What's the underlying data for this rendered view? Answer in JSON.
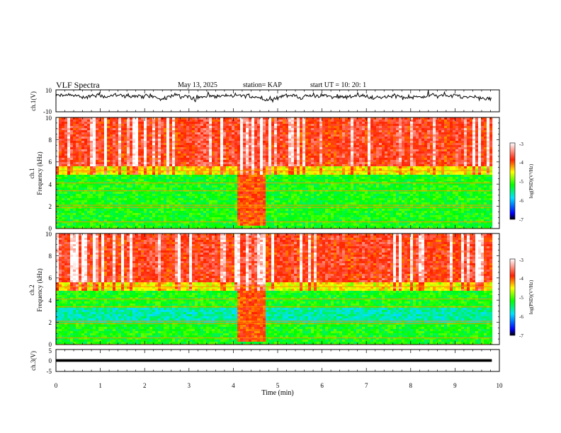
{
  "header": {
    "title": "VLF Spectra",
    "date": "May 13, 2025",
    "station": "station= KAP",
    "start_time": "start  UT  =   10: 20: 1"
  },
  "colorbar_label": "log(PSD)(V²/Hz)",
  "chart_data": [
    {
      "type": "line",
      "panel": "ch1-waveform",
      "ylabel": "ch.1(V)",
      "ylim": [
        -10,
        10
      ],
      "yticks": [
        "10",
        "-10"
      ],
      "xlim": [
        0,
        10
      ],
      "series": [
        {
          "name": "ch.1",
          "mean": 4,
          "amplitude_range": [
            -2,
            10
          ]
        }
      ]
    },
    {
      "type": "heatmap",
      "panel": "ch1-spectrogram",
      "ylabel": "ch.1",
      "ylabel2": "Frequency (kHz)",
      "ylim": [
        0,
        10
      ],
      "yticks": [
        "0",
        "2",
        "4",
        "6",
        "8",
        "10"
      ],
      "xlim": [
        0,
        10
      ],
      "data_extent_min": 9.83,
      "burst_interval_min": [
        4.1,
        4.7
      ],
      "colorbar": {
        "min": -7,
        "max": -3,
        "ticks": [
          "-3",
          "-4",
          "-5",
          "-6",
          "-7"
        ]
      }
    },
    {
      "type": "heatmap",
      "panel": "ch2-spectrogram",
      "ylabel": "ch.2",
      "ylabel2": "Frequency (kHz)",
      "ylim": [
        0,
        10
      ],
      "yticks": [
        "0",
        "2",
        "4",
        "6",
        "8",
        "10"
      ],
      "xlim": [
        0,
        10
      ],
      "data_extent_min": 9.83,
      "burst_interval_min": [
        4.1,
        4.7
      ],
      "colorbar": {
        "min": -7,
        "max": -3,
        "ticks": [
          "-3",
          "-4",
          "-5",
          "-6",
          "-7"
        ]
      }
    },
    {
      "type": "line",
      "panel": "ch3-waveform",
      "ylabel": "ch.3(V)",
      "ylim": [
        -5,
        5
      ],
      "yticks": [
        "5",
        "0",
        "-5"
      ],
      "xlim": [
        0,
        10
      ],
      "xlabel": "Time (min)",
      "xticks": [
        "0",
        "1",
        "2",
        "3",
        "4",
        "5",
        "6",
        "7",
        "8",
        "9",
        "10"
      ],
      "series": [
        {
          "name": "ch.3",
          "mean": 0,
          "band_halfwidth": 0.6
        }
      ]
    }
  ]
}
